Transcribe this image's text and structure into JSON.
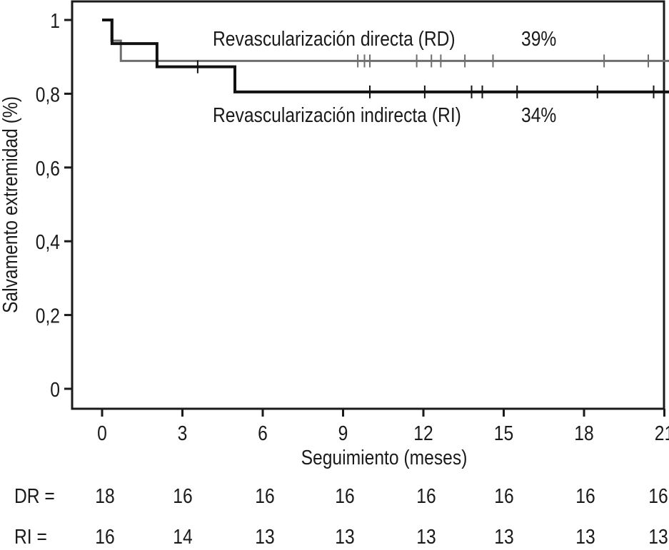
{
  "chart_data": {
    "type": "line",
    "subtype": "kaplan-meier-step",
    "title": "",
    "xlabel": "Seguimiento (meses)",
    "ylabel": "Salvamento extremidad (%)",
    "xlim": [
      0,
      21
    ],
    "ylim": [
      0,
      1
    ],
    "xticks": [
      0,
      3,
      6,
      9,
      12,
      15,
      18,
      21
    ],
    "xtick_labels": [
      "0",
      "3",
      "6",
      "9",
      "12",
      "15",
      "18",
      "21"
    ],
    "yticks": [
      0,
      0.2,
      0.4,
      0.6,
      0.8,
      1
    ],
    "ytick_labels": [
      "0",
      "0,2",
      "0,4",
      "0,6",
      "0,8",
      "1"
    ],
    "grid": false,
    "series": [
      {
        "name": "Revascularización directa (RD)",
        "annotation": "39%",
        "color": "#6e6e6e",
        "steps": [
          [
            0,
            1.0
          ],
          [
            0.35,
            0.944
          ],
          [
            0.7,
            0.889
          ]
        ],
        "end_x": 21,
        "censored": [
          9.55,
          9.8,
          10.0,
          11.75,
          12.3,
          12.65,
          13.55,
          14.6,
          18.75,
          20.4
        ]
      },
      {
        "name": "Revascularización indirecta (RI)",
        "annotation": "34%",
        "color": "#111111",
        "steps": [
          [
            0,
            1.0
          ],
          [
            0.37,
            0.936
          ],
          [
            2.05,
            0.873
          ],
          [
            4.96,
            0.805
          ]
        ],
        "end_x": 21,
        "censored": [
          3.57,
          10.0,
          12.05,
          13.8,
          14.2,
          15.5,
          18.5,
          20.6
        ]
      }
    ],
    "risk_table": [
      {
        "label": "DR =",
        "values": [
          "18",
          "16",
          "16",
          "16",
          "16",
          "16",
          "16",
          "16"
        ]
      },
      {
        "label": "RI =",
        "values": [
          "16",
          "14",
          "13",
          "13",
          "13",
          "13",
          "13",
          "13"
        ]
      }
    ]
  }
}
